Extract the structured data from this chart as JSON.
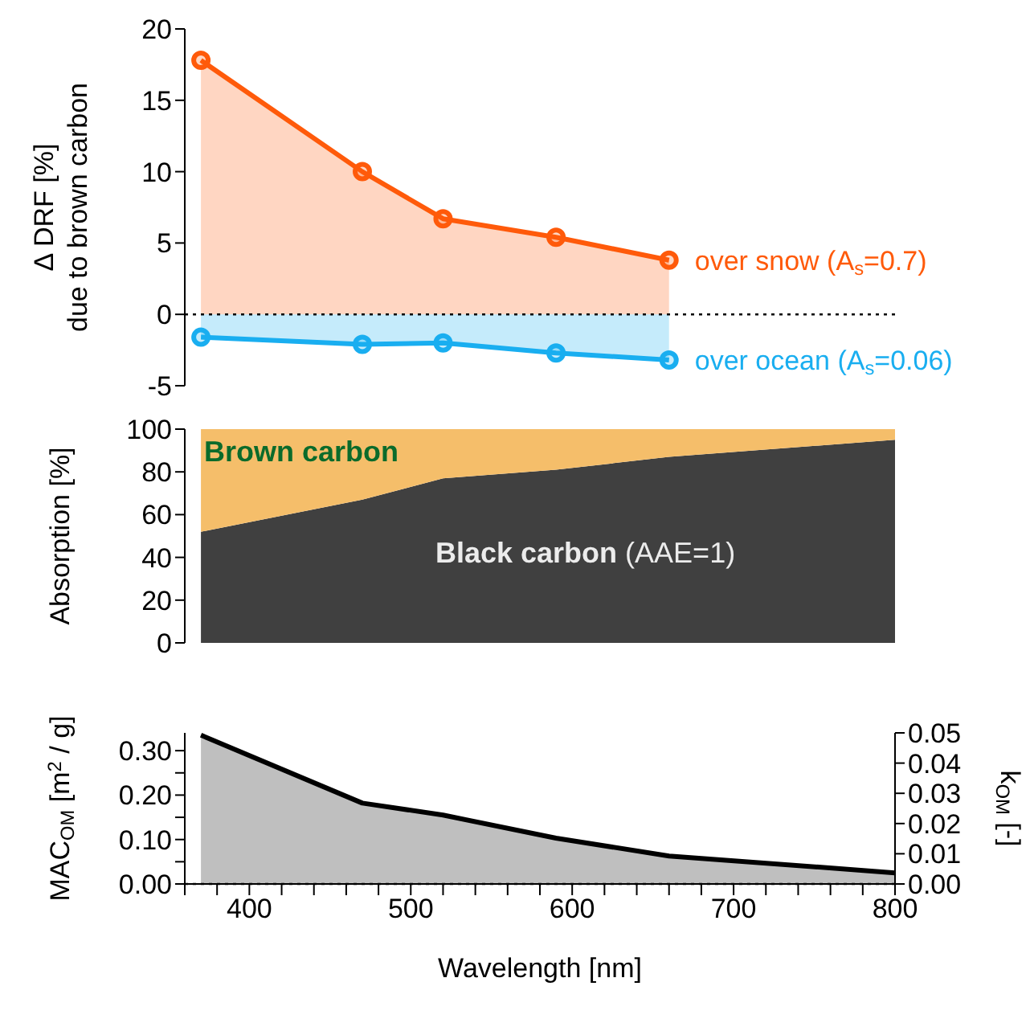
{
  "chart_data": [
    {
      "type": "area",
      "x": [
        370,
        470,
        520,
        590,
        660
      ],
      "ylabel": "Δ DRF [%]\ndue to brown carbon",
      "xlim": [
        360,
        800
      ],
      "ylim": [
        -5,
        20
      ],
      "yticks": [
        -5,
        0,
        5,
        10,
        15,
        20
      ],
      "tick_labels": "y",
      "marker": "circle",
      "legend": false,
      "grid": false,
      "series": [
        {
          "name": "over snow  (A$_{s}$=0.7)",
          "color": "#ff5a0a",
          "values": [
            17.8,
            10,
            6.7,
            5.4,
            3.8
          ]
        },
        {
          "name": "over ocean (A$_{s}$=0.06)",
          "color": "#19aef0",
          "values": [
            -1.6,
            -2.1,
            -2.0,
            -2.7,
            -3.2
          ]
        }
      ],
      "ref_lines": [
        {
          "axis": "y",
          "value": 0,
          "line_style": "dotted",
          "color": "#000000"
        }
      ]
    },
    {
      "type": "area",
      "stacked": true,
      "x": [
        370,
        470,
        520,
        590,
        660,
        800
      ],
      "ylabel": "Absorption [%]",
      "xlim": [
        360,
        800
      ],
      "ylim": [
        0,
        100
      ],
      "yticks": [
        0,
        20,
        40,
        60,
        80,
        100
      ],
      "tick_labels": "y",
      "legend": false,
      "grid": false,
      "series": [
        {
          "name": "Black carbon (AAE=1)",
          "color": "#404040",
          "values": [
            52,
            67,
            77,
            81,
            87,
            95
          ]
        },
        {
          "name": "Brown carbon",
          "color": "#f5be6a",
          "values": [
            48,
            33,
            23,
            19,
            13,
            5
          ]
        }
      ]
    },
    {
      "type": "area",
      "x": [
        370,
        470,
        520,
        590,
        660,
        800
      ],
      "xlabel": "Wavelength [nm]",
      "ylabel": "MAC$_{OM}$ [m$^{2}$ / g]",
      "y2label": "k$_{OM}$ [-]",
      "xlim": [
        360,
        800
      ],
      "ylim": [
        0,
        0.34
      ],
      "y2lim": [
        0,
        0.05
      ],
      "legend": false,
      "grid": false,
      "xticks": [
        {
          "value": 360,
          "label": null
        },
        {
          "value": 380,
          "label": null
        },
        400,
        {
          "value": 420,
          "label": null
        },
        {
          "value": 440,
          "label": null
        },
        {
          "value": 460,
          "label": null
        },
        {
          "value": 480,
          "label": null
        },
        500,
        {
          "value": 520,
          "label": null
        },
        {
          "value": 540,
          "label": null
        },
        {
          "value": 560,
          "label": null
        },
        {
          "value": 580,
          "label": null
        },
        600,
        {
          "value": 620,
          "label": null
        },
        {
          "value": 640,
          "label": null
        },
        {
          "value": 660,
          "label": null
        },
        {
          "value": 680,
          "label": null
        },
        700,
        {
          "value": 720,
          "label": null
        },
        {
          "value": 740,
          "label": null
        },
        {
          "value": 760,
          "label": null
        },
        {
          "value": 780,
          "label": null
        },
        800
      ],
      "yticks": [
        {
          "value": 0,
          "label": "0.00"
        },
        {
          "value": 0.05,
          "label": null
        },
        {
          "value": 0.1,
          "label": "0.10"
        },
        {
          "value": 0.15,
          "label": null
        },
        {
          "value": 0.2,
          "label": "0.20"
        },
        {
          "value": 0.25,
          "label": null
        },
        {
          "value": 0.3,
          "label": "0.30"
        }
      ],
      "y2ticks": [
        {
          "value": 0,
          "label": "0.00"
        },
        {
          "value": 0.01,
          "label": "0.01"
        },
        {
          "value": 0.02,
          "label": "0.02"
        },
        {
          "value": 0.03,
          "label": "0.03"
        },
        {
          "value": 0.04,
          "label": "0.04"
        },
        {
          "value": 0.05,
          "label": "0.05"
        }
      ],
      "series": [
        {
          "color": "#000000",
          "values": [
            0.335,
            0.182,
            0.155,
            0.103,
            0.063,
            0.025
          ]
        }
      ],
      "ref_lines": [
        {
          "axis": "y",
          "value": 0,
          "line_style": "dotted",
          "color": "#000000"
        }
      ]
    }
  ]
}
